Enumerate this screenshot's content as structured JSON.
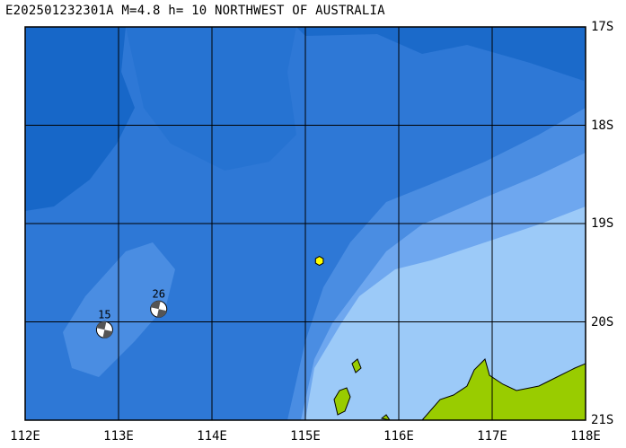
{
  "title": "E202501232301A M=4.8 h= 10 NORTHWEST OF AUSTRALIA",
  "lat_labels": [
    "17S",
    "18S",
    "19S",
    "20S",
    "21S"
  ],
  "lon_labels": [
    "112E",
    "113E",
    "114E",
    "115E",
    "116E",
    "117E",
    "118E"
  ],
  "map_extent": {
    "lon_min": 112,
    "lon_max": 118,
    "lat_min": -21,
    "lat_max": -17
  },
  "epicenter": {
    "lon": 115.15,
    "lat": -19.38,
    "color": "#ffff00"
  },
  "focal_mechanisms": [
    {
      "label": "26",
      "lon": 113.43,
      "lat": -19.87
    },
    {
      "label": "15",
      "lon": 112.85,
      "lat": -20.08
    }
  ],
  "colors": {
    "ocean_deep": "#1767c8",
    "ocean_mid": "#2e78d6",
    "ocean_shelf": "#4a8de2",
    "ocean_shallow": "#6ea7ef",
    "ocean_coast": "#9ccaf8",
    "land": "#99cc00",
    "grid": "#000000"
  }
}
